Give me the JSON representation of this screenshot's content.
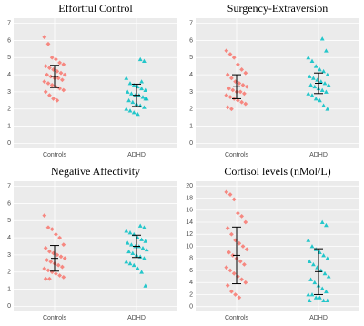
{
  "chart_data": [
    {
      "type": "strip",
      "title": "Effortful Control",
      "categories": [
        "Controls",
        "ADHD"
      ],
      "ylim": [
        -0.3,
        7.3
      ],
      "yticks": [
        0,
        1,
        2,
        3,
        4,
        5,
        6,
        7
      ],
      "grid": true,
      "series": [
        {
          "color": "#f8766d",
          "shape": "diamond",
          "mean": 3.9,
          "sd": 0.65,
          "values": [
            6.2,
            5.8,
            5.0,
            4.9,
            4.7,
            4.6,
            4.5,
            4.4,
            4.3,
            4.2,
            4.1,
            4.0,
            4.0,
            3.9,
            3.8,
            3.8,
            3.7,
            3.6,
            3.5,
            3.4,
            3.3,
            3.2,
            3.1,
            3.0,
            2.8,
            2.6,
            2.5
          ]
        },
        {
          "color": "#00bfc4",
          "shape": "triangle",
          "mean": 2.8,
          "sd": 0.65,
          "values": [
            4.9,
            4.8,
            3.8,
            3.5,
            3.4,
            3.3,
            3.2,
            3.1,
            3.0,
            2.9,
            2.8,
            2.8,
            2.7,
            2.6,
            2.5,
            2.4,
            2.3,
            2.2,
            2.1,
            2.0,
            1.9,
            1.8,
            1.7,
            3.6,
            2.6
          ]
        }
      ]
    },
    {
      "type": "strip",
      "title": "Surgency-Extraversion",
      "categories": [
        "Controls",
        "ADHD"
      ],
      "ylim": [
        -0.3,
        7.3
      ],
      "yticks": [
        0,
        1,
        2,
        3,
        4,
        5,
        6,
        7
      ],
      "grid": true,
      "series": [
        {
          "color": "#f8766d",
          "shape": "diamond",
          "mean": 3.3,
          "sd": 0.7,
          "values": [
            5.4,
            5.2,
            5.0,
            4.6,
            4.3,
            4.1,
            4.0,
            3.8,
            3.6,
            3.5,
            3.4,
            3.3,
            3.2,
            3.1,
            3.0,
            3.0,
            2.9,
            2.8,
            2.7,
            2.6,
            2.5,
            2.4,
            2.3,
            2.1,
            2.0
          ]
        },
        {
          "color": "#00bfc4",
          "shape": "triangle",
          "mean": 3.5,
          "sd": 0.6,
          "values": [
            6.1,
            5.4,
            5.0,
            4.8,
            4.5,
            4.3,
            4.2,
            4.0,
            3.9,
            3.8,
            3.7,
            3.6,
            3.5,
            3.4,
            3.4,
            3.3,
            3.2,
            3.1,
            3.0,
            2.9,
            2.8,
            2.6,
            2.5,
            2.2,
            2.0
          ]
        }
      ]
    },
    {
      "type": "strip",
      "title": "Negative Affectivity",
      "categories": [
        "Controls",
        "ADHD"
      ],
      "ylim": [
        -0.3,
        7.3
      ],
      "yticks": [
        0,
        1,
        2,
        3,
        4,
        5,
        6,
        7
      ],
      "grid": true,
      "series": [
        {
          "color": "#f8766d",
          "shape": "diamond",
          "mean": 2.8,
          "sd": 0.75,
          "values": [
            5.3,
            4.6,
            4.5,
            4.2,
            4.0,
            3.6,
            3.4,
            3.2,
            3.1,
            3.0,
            2.9,
            2.8,
            2.7,
            2.6,
            2.5,
            2.4,
            2.3,
            2.2,
            2.1,
            2.0,
            1.9,
            1.8,
            1.7,
            1.6,
            1.6
          ]
        },
        {
          "color": "#00bfc4",
          "shape": "triangle",
          "mean": 3.5,
          "sd": 0.65,
          "values": [
            4.7,
            4.6,
            4.4,
            4.3,
            4.2,
            4.0,
            3.9,
            3.8,
            3.7,
            3.6,
            3.5,
            3.5,
            3.4,
            3.3,
            3.2,
            3.1,
            3.0,
            2.9,
            2.8,
            2.6,
            2.5,
            2.4,
            2.2,
            2.0,
            1.2
          ]
        }
      ]
    },
    {
      "type": "strip",
      "title": "Cortisol levels (nMol/L)",
      "categories": [
        "Controls",
        "ADHD"
      ],
      "ylim": [
        -0.8,
        20.8
      ],
      "yticks": [
        0,
        2,
        4,
        6,
        8,
        10,
        12,
        14,
        16,
        18,
        20
      ],
      "grid": true,
      "series": [
        {
          "color": "#f8766d",
          "shape": "diamond",
          "mean": 8.5,
          "sd": 4.7,
          "values": [
            19,
            18.6,
            17.8,
            15.5,
            15,
            14,
            13,
            12,
            11,
            10.5,
            10,
            9.5,
            9,
            8.5,
            8,
            7.5,
            7,
            6.5,
            6,
            5.5,
            5,
            4.5,
            4,
            3.5,
            2.5,
            2,
            1.5
          ]
        },
        {
          "color": "#00bfc4",
          "shape": "triangle",
          "mean": 5.8,
          "sd": 3.8,
          "values": [
            14,
            13.5,
            11,
            10,
            9.5,
            9,
            8.5,
            8,
            7.5,
            7,
            6.5,
            6,
            5.5,
            5,
            4.5,
            4,
            3.5,
            3,
            2.5,
            2,
            2,
            1.5,
            1.5,
            1,
            1,
            1
          ]
        }
      ]
    }
  ]
}
